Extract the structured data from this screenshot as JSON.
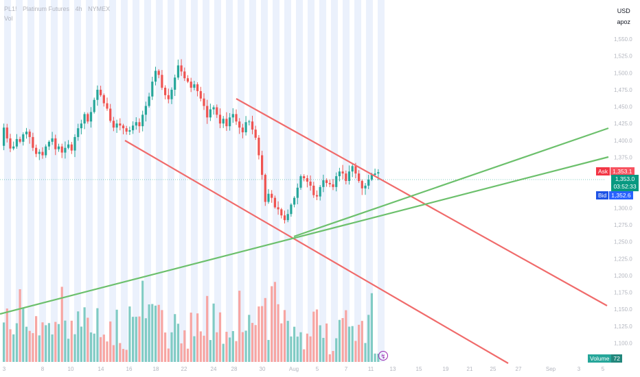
{
  "legend": {
    "symbol": "PL1!",
    "name": "Platinum Futures",
    "interval": "4h",
    "exchange": "NYMEX",
    "indicator": "Vol"
  },
  "scale": {
    "currency": "USD",
    "unit": "apoz"
  },
  "quotes": {
    "ask_label": "Ask",
    "ask": "1,353.1",
    "last": "1,353.0",
    "countdown": "03:52:33",
    "bid_label": "Bid",
    "bid": "1,352.6"
  },
  "volume_tag": {
    "label": "Volume",
    "value": "72"
  },
  "colors": {
    "up": "#26a69a",
    "down": "#ef5350",
    "channel": "#f06b6b",
    "support": "#6cc06c",
    "session": "#e8eefc",
    "volume_up": "#80cbc4",
    "volume_down": "#f7a5a2"
  },
  "chart_data": {
    "type": "candlestick",
    "y_ticks": [
      "1,550.0",
      "1,525.0",
      "1,500.0",
      "1,475.0",
      "1,450.0",
      "1,425.0",
      "1,400.0",
      "1,375.0",
      "1,350.0",
      "1,325.0",
      "1,300.0",
      "1,275.0",
      "1,250.0",
      "1,225.0",
      "1,200.0",
      "1,175.0",
      "1,150.0",
      "1,125.0",
      "1,100.0"
    ],
    "x_ticks": [
      "3",
      "8",
      "10",
      "14",
      "16",
      "18",
      "22",
      "24",
      "28",
      "30",
      "Aug",
      "5",
      "7",
      "11",
      "13",
      "15",
      "19",
      "21",
      "25",
      "27",
      "Sep",
      "3",
      "5"
    ],
    "ylim": [
      1100,
      1575
    ],
    "close": [
      1419,
      1403,
      1388,
      1391,
      1402,
      1398,
      1409,
      1413,
      1405,
      1389,
      1380,
      1383,
      1378,
      1391,
      1398,
      1403,
      1387,
      1391,
      1382,
      1389,
      1394,
      1385,
      1405,
      1418,
      1425,
      1439,
      1428,
      1442,
      1460,
      1475,
      1467,
      1455,
      1447,
      1429,
      1419,
      1425,
      1422,
      1418,
      1413,
      1415,
      1422,
      1427,
      1421,
      1438,
      1451,
      1465,
      1487,
      1503,
      1497,
      1478,
      1467,
      1461,
      1475,
      1493,
      1511,
      1502,
      1492,
      1487,
      1478,
      1483,
      1473,
      1462,
      1451,
      1434,
      1446,
      1449,
      1438,
      1425,
      1432,
      1421,
      1434,
      1439,
      1428,
      1419,
      1412,
      1427,
      1428,
      1416,
      1404,
      1378,
      1349,
      1309,
      1321,
      1315,
      1301,
      1298,
      1289,
      1282,
      1291,
      1305,
      1315,
      1330,
      1347,
      1344,
      1339,
      1333,
      1319,
      1317,
      1331,
      1341,
      1337,
      1335,
      1331,
      1347,
      1354,
      1351,
      1340,
      1354,
      1362,
      1351,
      1340,
      1329,
      1333,
      1342,
      1349,
      1351,
      1353
    ]
  }
}
